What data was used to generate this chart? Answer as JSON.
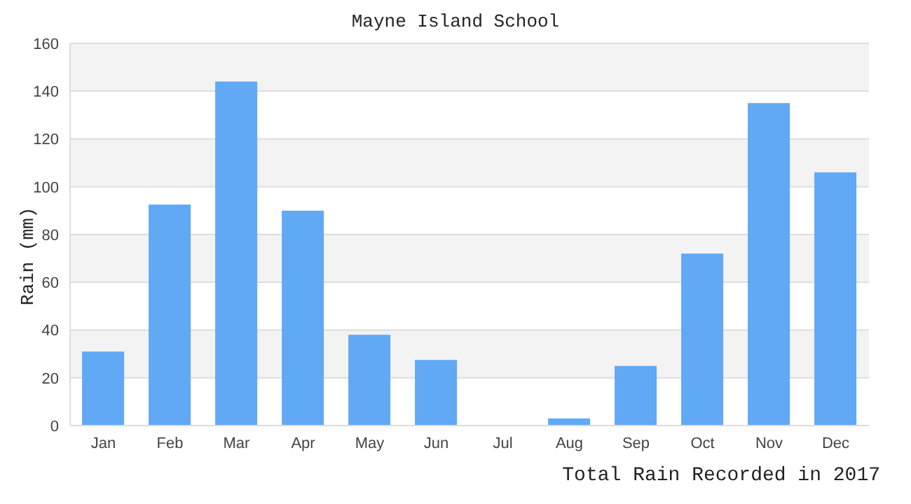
{
  "chart_data": {
    "type": "bar",
    "title": "Mayne Island School",
    "ylabel": "Rain (mm)",
    "annotations": [
      "Total Rain Recorded in 2017"
    ],
    "categories": [
      "Jan",
      "Feb",
      "Mar",
      "Apr",
      "May",
      "Jun",
      "Jul",
      "Aug",
      "Sep",
      "Oct",
      "Nov",
      "Dec"
    ],
    "values": [
      31,
      92.5,
      144,
      90,
      38,
      27.5,
      0,
      3,
      25,
      72,
      135,
      106
    ],
    "color": "#61a8f5",
    "ylim": [
      0,
      160
    ],
    "yticks": [
      0,
      20,
      40,
      60,
      80,
      100,
      120,
      140,
      160
    ],
    "grid": "y"
  }
}
